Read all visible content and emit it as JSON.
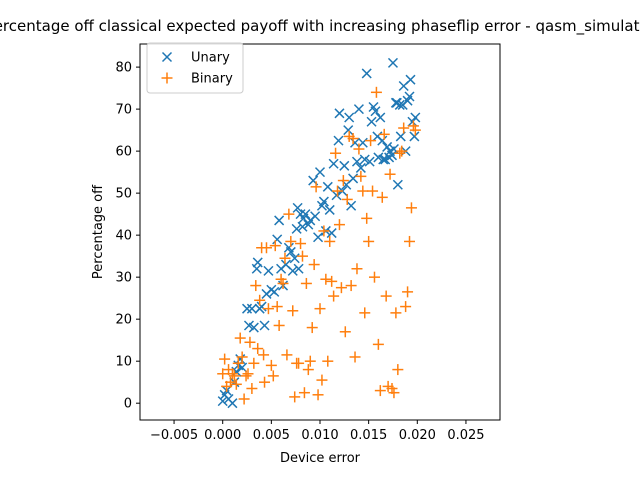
{
  "chart_data": {
    "type": "scatter",
    "title": "Percentage off classical expected payoff with increasing phaseflip error - qasm_simulator",
    "xlabel": "Device error",
    "ylabel": "Percentage off",
    "xlim": [
      -0.0085,
      0.0285
    ],
    "ylim": [
      -4.0,
      85.5
    ],
    "xticks": [
      -0.005,
      0.0,
      0.005,
      0.01,
      0.015,
      0.02,
      0.025
    ],
    "xtick_labels": [
      "−0.005",
      "0.000",
      "0.005",
      "0.010",
      "0.015",
      "0.020",
      "0.025"
    ],
    "yticks": [
      0,
      10,
      20,
      30,
      40,
      50,
      60,
      70,
      80
    ],
    "ytick_labels": [
      "0",
      "10",
      "20",
      "30",
      "40",
      "50",
      "60",
      "70",
      "80"
    ],
    "grid": false,
    "legend_position": "top-left",
    "series": [
      {
        "name": "Unary",
        "marker": "x",
        "color": "#1f77b4",
        "points": [
          [
            0.0,
            0.5
          ],
          [
            0.0002,
            2.0
          ],
          [
            0.0004,
            3.0
          ],
          [
            0.0006,
            1.0
          ],
          [
            0.001,
            0.0
          ],
          [
            0.0012,
            5.0
          ],
          [
            0.0014,
            7.5
          ],
          [
            0.0016,
            9.0
          ],
          [
            0.0018,
            10.5
          ],
          [
            0.002,
            8.5
          ],
          [
            0.0025,
            22.5
          ],
          [
            0.0027,
            18.5
          ],
          [
            0.003,
            22.5
          ],
          [
            0.0032,
            18.0
          ],
          [
            0.0035,
            32.0
          ],
          [
            0.0036,
            33.5
          ],
          [
            0.0038,
            22.5
          ],
          [
            0.004,
            23.0
          ],
          [
            0.0043,
            18.5
          ],
          [
            0.0045,
            26.0
          ],
          [
            0.0047,
            31.5
          ],
          [
            0.005,
            27.0
          ],
          [
            0.0053,
            26.5
          ],
          [
            0.0056,
            39.0
          ],
          [
            0.0058,
            43.5
          ],
          [
            0.006,
            32.0
          ],
          [
            0.0062,
            28.0
          ],
          [
            0.0065,
            33.0
          ],
          [
            0.0068,
            37.0
          ],
          [
            0.007,
            36.0
          ],
          [
            0.0072,
            31.5
          ],
          [
            0.0074,
            34.5
          ],
          [
            0.0076,
            41.5
          ],
          [
            0.0077,
            46.5
          ],
          [
            0.0078,
            32.0
          ],
          [
            0.008,
            45.0
          ],
          [
            0.0082,
            42.0
          ],
          [
            0.0083,
            44.0
          ],
          [
            0.0085,
            45.0
          ],
          [
            0.0088,
            42.5
          ],
          [
            0.009,
            43.5
          ],
          [
            0.0093,
            53.0
          ],
          [
            0.0095,
            44.5
          ],
          [
            0.0098,
            39.5
          ],
          [
            0.01,
            55.0
          ],
          [
            0.0102,
            47.0
          ],
          [
            0.0104,
            48.0
          ],
          [
            0.0106,
            41.0
          ],
          [
            0.0108,
            51.5
          ],
          [
            0.011,
            46.0
          ],
          [
            0.0112,
            40.5
          ],
          [
            0.0114,
            57.0
          ],
          [
            0.0117,
            49.5
          ],
          [
            0.0119,
            62.5
          ],
          [
            0.012,
            69.0
          ],
          [
            0.0123,
            50.5
          ],
          [
            0.0125,
            56.5
          ],
          [
            0.0127,
            52.0
          ],
          [
            0.0129,
            65.0
          ],
          [
            0.013,
            68.0
          ],
          [
            0.0132,
            47.0
          ],
          [
            0.0134,
            53.5
          ],
          [
            0.0136,
            62.0
          ],
          [
            0.0138,
            57.5
          ],
          [
            0.014,
            70.0
          ],
          [
            0.0142,
            56.0
          ],
          [
            0.0144,
            62.0
          ],
          [
            0.0146,
            58.0
          ],
          [
            0.0148,
            78.5
          ],
          [
            0.0151,
            57.5
          ],
          [
            0.0153,
            67.0
          ],
          [
            0.0155,
            70.5
          ],
          [
            0.0157,
            69.5
          ],
          [
            0.0159,
            63.5
          ],
          [
            0.016,
            58.5
          ],
          [
            0.0162,
            68.0
          ],
          [
            0.0164,
            62.5
          ],
          [
            0.0165,
            58.0
          ],
          [
            0.0167,
            58.0
          ],
          [
            0.0169,
            61.0
          ],
          [
            0.0171,
            58.5
          ],
          [
            0.0172,
            60.0
          ],
          [
            0.0174,
            59.0
          ],
          [
            0.0175,
            81.0
          ],
          [
            0.0176,
            60.5
          ],
          [
            0.0178,
            71.5
          ],
          [
            0.0179,
            71.5
          ],
          [
            0.018,
            52.0
          ],
          [
            0.0182,
            71.0
          ],
          [
            0.0183,
            63.5
          ],
          [
            0.0185,
            71.0
          ],
          [
            0.0186,
            75.5
          ],
          [
            0.0188,
            60.0
          ],
          [
            0.019,
            72.0
          ],
          [
            0.0192,
            73.0
          ],
          [
            0.0193,
            77.0
          ],
          [
            0.0195,
            67.0
          ],
          [
            0.0197,
            63.5
          ],
          [
            0.0198,
            68.0
          ]
        ]
      },
      {
        "name": "Binary",
        "marker": "+",
        "color": "#ff7f0e",
        "points": [
          [
            0.0,
            7.0
          ],
          [
            0.0002,
            10.5
          ],
          [
            0.0004,
            4.0
          ],
          [
            0.0006,
            8.0
          ],
          [
            0.0008,
            5.0
          ],
          [
            0.001,
            7.0
          ],
          [
            0.0012,
            6.5
          ],
          [
            0.0014,
            4.5
          ],
          [
            0.0016,
            9.5
          ],
          [
            0.0018,
            15.5
          ],
          [
            0.002,
            11.0
          ],
          [
            0.0022,
            1.0
          ],
          [
            0.0024,
            6.5
          ],
          [
            0.0026,
            7.0
          ],
          [
            0.0028,
            14.5
          ],
          [
            0.003,
            3.5
          ],
          [
            0.0032,
            9.5
          ],
          [
            0.0034,
            28.0
          ],
          [
            0.0036,
            13.0
          ],
          [
            0.0038,
            24.5
          ],
          [
            0.004,
            37.0
          ],
          [
            0.0042,
            11.5
          ],
          [
            0.0043,
            5.0
          ],
          [
            0.0045,
            37.0
          ],
          [
            0.0047,
            22.5
          ],
          [
            0.005,
            9.0
          ],
          [
            0.0052,
            6.5
          ],
          [
            0.0054,
            37.5
          ],
          [
            0.0056,
            23.0
          ],
          [
            0.0058,
            18.5
          ],
          [
            0.006,
            29.5
          ],
          [
            0.0062,
            28.5
          ],
          [
            0.0064,
            34.5
          ],
          [
            0.0066,
            11.5
          ],
          [
            0.0068,
            45.0
          ],
          [
            0.007,
            38.5
          ],
          [
            0.0072,
            22.0
          ],
          [
            0.0074,
            1.5
          ],
          [
            0.0076,
            9.5
          ],
          [
            0.0078,
            9.5
          ],
          [
            0.008,
            38.0
          ],
          [
            0.0082,
            35.0
          ],
          [
            0.0084,
            2.5
          ],
          [
            0.0086,
            28.5
          ],
          [
            0.0088,
            8.0
          ],
          [
            0.009,
            10.0
          ],
          [
            0.0092,
            18.0
          ],
          [
            0.0094,
            33.0
          ],
          [
            0.0096,
            51.5
          ],
          [
            0.0098,
            2.0
          ],
          [
            0.01,
            22.5
          ],
          [
            0.0102,
            5.5
          ],
          [
            0.0104,
            41.0
          ],
          [
            0.0106,
            29.5
          ],
          [
            0.0108,
            10.0
          ],
          [
            0.011,
            38.5
          ],
          [
            0.0112,
            29.0
          ],
          [
            0.0114,
            25.5
          ],
          [
            0.0116,
            59.5
          ],
          [
            0.0118,
            50.5
          ],
          [
            0.012,
            42.5
          ],
          [
            0.0122,
            27.5
          ],
          [
            0.0124,
            53.0
          ],
          [
            0.0126,
            17.0
          ],
          [
            0.0128,
            48.5
          ],
          [
            0.013,
            63.5
          ],
          [
            0.0132,
            28.0
          ],
          [
            0.0134,
            63.0
          ],
          [
            0.0136,
            11.0
          ],
          [
            0.0138,
            32.0
          ],
          [
            0.014,
            60.5
          ],
          [
            0.0142,
            54.0
          ],
          [
            0.0144,
            50.5
          ],
          [
            0.0146,
            21.5
          ],
          [
            0.0148,
            44.0
          ],
          [
            0.015,
            38.5
          ],
          [
            0.0152,
            62.5
          ],
          [
            0.0154,
            50.5
          ],
          [
            0.0156,
            30.0
          ],
          [
            0.0158,
            74.0
          ],
          [
            0.016,
            14.0
          ],
          [
            0.0162,
            3.0
          ],
          [
            0.0164,
            49.0
          ],
          [
            0.0166,
            64.0
          ],
          [
            0.0168,
            25.5
          ],
          [
            0.017,
            4.0
          ],
          [
            0.0172,
            54.5
          ],
          [
            0.0174,
            3.5
          ],
          [
            0.0176,
            2.5
          ],
          [
            0.0178,
            21.5
          ],
          [
            0.018,
            8.0
          ],
          [
            0.0182,
            59.5
          ],
          [
            0.0184,
            60.0
          ],
          [
            0.0186,
            65.5
          ],
          [
            0.0188,
            23.0
          ],
          [
            0.019,
            26.5
          ],
          [
            0.0192,
            38.5
          ],
          [
            0.0194,
            46.5
          ],
          [
            0.0196,
            66.0
          ],
          [
            0.0198,
            65.0
          ]
        ]
      }
    ]
  }
}
